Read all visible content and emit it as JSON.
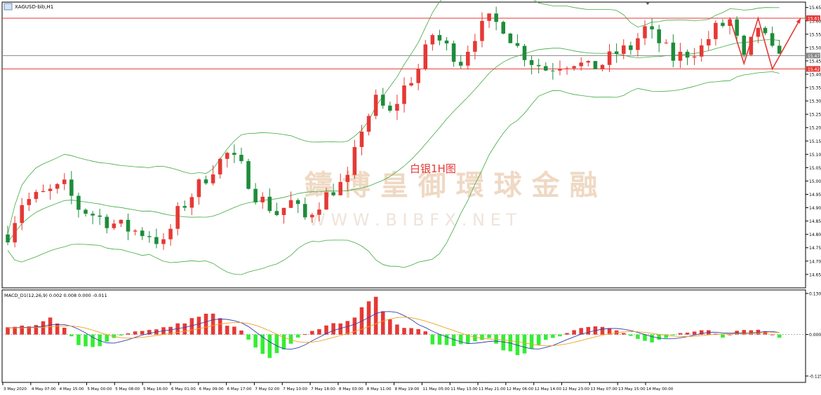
{
  "header": {
    "symbol_label": "XAGUSD-bib,H1"
  },
  "annotation": {
    "title": "白银1H图"
  },
  "watermark": {
    "cn": "鑄 博 皇 御 環 球 金 融",
    "en": "W W W . B I B F X . N E T"
  },
  "price_panel": {
    "ylim": [
      14.605,
      15.665
    ],
    "ticks": [
      "15.65",
      "15.60",
      "15.55",
      "15.50",
      "15.45",
      "15.40",
      "15.35",
      "15.30",
      "15.25",
      "15.20",
      "15.15",
      "15.10",
      "15.05",
      "15.00",
      "14.95",
      "14.90",
      "14.85",
      "14.80",
      "14.75",
      "14.70",
      "14.65"
    ],
    "levels": [
      {
        "value": 15.61,
        "label": "15.61",
        "color": "#e53935"
      },
      {
        "value": 15.47,
        "label": "15.47",
        "color": "#888888"
      },
      {
        "value": 15.42,
        "label": "15.42",
        "color": "#e53935"
      }
    ]
  },
  "macd_panel": {
    "label": "MACD_D1(12,26,9) 0.002 0.008 0.000 -0.011",
    "ylim": [
      -0.14,
      0.13
    ],
    "ticks": [
      "0.130",
      "0.000",
      "-0.125"
    ]
  },
  "time_axis": {
    "labels": [
      "3 May 2020",
      "4 May 07:00",
      "4 May 15:00",
      "5 May 00:00",
      "5 May 08:00",
      "5 May 16:00",
      "6 May 01:00",
      "6 May 09:00",
      "6 May 17:00",
      "7 May 02:00",
      "7 May 10:00",
      "7 May 18:00",
      "8 May 03:00",
      "8 May 11:00",
      "8 May 19:00",
      "11 May 05:00",
      "11 May 13:00",
      "11 May 21:00",
      "12 May 06:00",
      "12 May 14:00",
      "12 May 23:00",
      "13 May 07:00",
      "13 May 15:00",
      "14 May 00:00"
    ]
  },
  "colors": {
    "bull": "#e53935",
    "bear": "#1e8c3a",
    "band": "#3faa3f",
    "macd_pos": "#e53935",
    "macd_neg": "#33ee33",
    "macd_line": "#3340b0",
    "signal_line": "#f0a020",
    "arrow": "#e53935"
  },
  "chart_data": {
    "type": "candlestick",
    "candle_count": 110,
    "price_path": [
      [
        0,
        14.8
      ],
      [
        2,
        14.92
      ],
      [
        5,
        14.95
      ],
      [
        8,
        14.98
      ],
      [
        10,
        14.9
      ],
      [
        14,
        14.85
      ],
      [
        17,
        14.82
      ],
      [
        20,
        14.8
      ],
      [
        22,
        14.76
      ],
      [
        24,
        14.88
      ],
      [
        26,
        14.95
      ],
      [
        29,
        15.05
      ],
      [
        31,
        15.1
      ],
      [
        33,
        15.05
      ],
      [
        35,
        14.95
      ],
      [
        38,
        14.88
      ],
      [
        40,
        14.92
      ],
      [
        42,
        14.86
      ],
      [
        44,
        14.92
      ],
      [
        46,
        14.97
      ],
      [
        48,
        15.0
      ],
      [
        50,
        15.2
      ],
      [
        52,
        15.3
      ],
      [
        54,
        15.25
      ],
      [
        56,
        15.35
      ],
      [
        58,
        15.42
      ],
      [
        60,
        15.55
      ],
      [
        62,
        15.5
      ],
      [
        64,
        15.45
      ],
      [
        66,
        15.55
      ],
      [
        68,
        15.6
      ],
      [
        70,
        15.58
      ],
      [
        72,
        15.5
      ],
      [
        74,
        15.45
      ],
      [
        76,
        15.42
      ],
      [
        78,
        15.44
      ],
      [
        80,
        15.45
      ],
      [
        82,
        15.42
      ],
      [
        84,
        15.44
      ],
      [
        86,
        15.48
      ],
      [
        88,
        15.5
      ],
      [
        90,
        15.57
      ],
      [
        92,
        15.52
      ],
      [
        94,
        15.46
      ],
      [
        96,
        15.48
      ],
      [
        98,
        15.5
      ],
      [
        100,
        15.57
      ],
      [
        102,
        15.6
      ],
      [
        104,
        15.45
      ],
      [
        106,
        15.58
      ],
      [
        108,
        15.48
      ],
      [
        109,
        15.5
      ]
    ],
    "projection": [
      [
        102,
        15.61
      ],
      [
        104,
        15.44
      ],
      [
        106,
        15.61
      ],
      [
        108,
        15.42
      ],
      [
        112,
        15.61
      ]
    ],
    "macd_hist_path": [
      [
        0,
        0.02
      ],
      [
        4,
        0.03
      ],
      [
        6,
        0.045
      ],
      [
        8,
        0.02
      ],
      [
        10,
        -0.03
      ],
      [
        13,
        -0.04
      ],
      [
        15,
        -0.01
      ],
      [
        18,
        0.01
      ],
      [
        21,
        0.015
      ],
      [
        24,
        0.03
      ],
      [
        27,
        0.055
      ],
      [
        29,
        0.06
      ],
      [
        31,
        0.03
      ],
      [
        33,
        0.012
      ],
      [
        35,
        -0.04
      ],
      [
        37,
        -0.065
      ],
      [
        39,
        -0.04
      ],
      [
        41,
        -0.01
      ],
      [
        43,
        0.012
      ],
      [
        46,
        0.03
      ],
      [
        49,
        0.055
      ],
      [
        51,
        0.09
      ],
      [
        52,
        0.1
      ],
      [
        54,
        0.05
      ],
      [
        56,
        0.02
      ],
      [
        58,
        0.018
      ],
      [
        59,
        0.01
      ],
      [
        60,
        -0.03
      ],
      [
        63,
        -0.04
      ],
      [
        66,
        -0.02
      ],
      [
        68,
        -0.01
      ],
      [
        70,
        -0.045
      ],
      [
        72,
        -0.06
      ],
      [
        74,
        -0.04
      ],
      [
        76,
        -0.015
      ],
      [
        78,
        -0.005
      ],
      [
        80,
        0.015
      ],
      [
        83,
        0.025
      ],
      [
        85,
        0.02
      ],
      [
        87,
        0.005
      ],
      [
        89,
        -0.015
      ],
      [
        91,
        -0.025
      ],
      [
        93,
        -0.01
      ],
      [
        95,
        0.005
      ],
      [
        97,
        0.008
      ],
      [
        99,
        0.015
      ],
      [
        101,
        -0.01
      ],
      [
        103,
        0.01
      ],
      [
        105,
        0.015
      ],
      [
        107,
        0.01
      ],
      [
        109,
        -0.01
      ]
    ]
  }
}
